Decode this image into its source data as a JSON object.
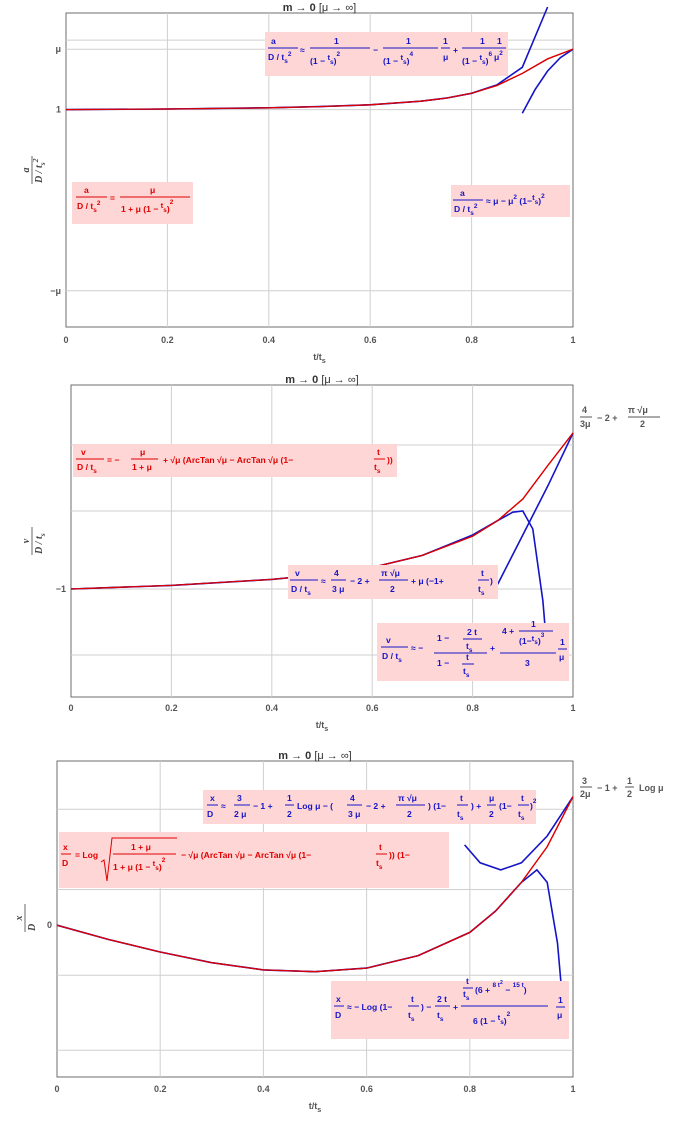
{
  "chart_data": [
    {
      "type": "line",
      "title": "m → 0",
      "subtitle": "[μ → ∞]",
      "xlabel": "t/t_s",
      "ylabel": "a / (D/t_s^2)",
      "xlim": [
        0,
        1
      ],
      "x_ticks": [
        "0",
        "0.2",
        "0.4",
        "0.6",
        "0.8",
        "1"
      ],
      "y_ticks": [
        "μ",
        "1",
        "−μ"
      ],
      "grid": true,
      "colors": {
        "exact": "#dd0000",
        "approx": "#1414c8",
        "label_bg": "#ffd6d6"
      },
      "annotations": [
        {
          "color": "red",
          "text": "a / (D/t_s^2) = μ / (1 + μ(1 − t/t_s)^2)"
        },
        {
          "color": "blue",
          "text": "a / (D/t_s^2) ≈ 1/(1 − t/t_s)^2 − 1/(1 − t/t_s)^4 · 1/μ + 1/(1 − t/t_s)^6 · 1/μ^2"
        },
        {
          "color": "blue",
          "text": "a / (D/t_s^2) ≈ μ − μ^2 (1 − t/t_s)^2"
        }
      ],
      "series": [
        {
          "color": "red",
          "x": [
            0,
            0.2,
            0.4,
            0.5,
            0.6,
            0.7,
            0.75,
            0.8,
            0.85,
            0.9,
            0.95,
            1.0
          ],
          "y": [
            1.0,
            1.01,
            1.03,
            1.05,
            1.08,
            1.14,
            1.19,
            1.27,
            1.4,
            1.6,
            1.84,
            2.0
          ]
        },
        {
          "color": "blue",
          "x": [
            0,
            0.2,
            0.4,
            0.5,
            0.6,
            0.7,
            0.75,
            0.8,
            0.85,
            0.9,
            0.95
          ],
          "y": [
            1.0,
            1.01,
            1.03,
            1.05,
            1.08,
            1.14,
            1.19,
            1.27,
            1.41,
            1.7,
            2.7
          ]
        },
        {
          "color": "blue",
          "x": [
            0.9,
            0.925,
            0.95,
            0.975,
            1.0
          ],
          "y": [
            0.94,
            1.33,
            1.64,
            1.86,
            2.0
          ]
        }
      ]
    },
    {
      "type": "line",
      "title": "m → 0",
      "subtitle": "[μ → ∞]",
      "xlabel": "t/t_s",
      "ylabel": "v / (D/t_s)",
      "xlim": [
        0,
        1
      ],
      "x_ticks": [
        "0",
        "0.2",
        "0.4",
        "0.6",
        "0.8",
        "1"
      ],
      "y_ticks": [
        "−1"
      ],
      "grid": true,
      "right_label": "4/(3μ) − 2 + π√μ/2",
      "annotations": [
        {
          "color": "red",
          "text": "v / (D/t_s) = − μ/(1 + μ) + √μ (ArcTan √μ − ArcTan √μ (1 − t/t_s))"
        },
        {
          "color": "blue",
          "text": "v / (D/t_s) ≈ 4/(3μ) − 2 + π√μ/2 + μ(−1 + t/t_s)"
        },
        {
          "color": "blue",
          "text": "v / (D/t_s) ≈ − (1 − 2t/t_s)/(1 − t/t_s) + (4 + 1/(1 − t/t_s)^3)/3 · 1/μ"
        }
      ],
      "series": [
        {
          "color": "red",
          "x": [
            0,
            0.2,
            0.4,
            0.5,
            0.6,
            0.7,
            0.8,
            0.85,
            0.9,
            0.95,
            1.0
          ],
          "y": [
            -1.0,
            -0.97,
            -0.92,
            -0.88,
            -0.82,
            -0.72,
            -0.56,
            -0.43,
            -0.25,
            0.03,
            0.3
          ]
        },
        {
          "color": "blue",
          "x": [
            0,
            0.2,
            0.4,
            0.5,
            0.6,
            0.7,
            0.8,
            0.85,
            0.88,
            0.9,
            0.92,
            0.94,
            0.95
          ],
          "y": [
            -1.0,
            -0.97,
            -0.92,
            -0.88,
            -0.82,
            -0.72,
            -0.55,
            -0.43,
            -0.36,
            -0.35,
            -0.5,
            -1.1,
            -1.6
          ]
        },
        {
          "color": "blue",
          "x": [
            0.85,
            0.9,
            0.95,
            1.0
          ],
          "y": [
            -0.96,
            -0.55,
            -0.14,
            0.3
          ]
        }
      ]
    },
    {
      "type": "line",
      "title": "m → 0",
      "subtitle": "[μ → ∞]",
      "xlabel": "t/t_s",
      "ylabel": "x / D",
      "xlim": [
        0,
        1
      ],
      "x_ticks": [
        "0",
        "0.2",
        "0.4",
        "0.6",
        "0.8",
        "1"
      ],
      "y_ticks": [
        "0"
      ],
      "grid": true,
      "right_label": "3/(2μ) − 1 + 1/2 Log μ",
      "annotations": [
        {
          "color": "blue",
          "text": "x / D ≈ 3/(2μ) − 1 + 1/2 Log μ − (4/(3μ) − 2 + π√μ/2)(1 − t/t_s) + μ/2 (1 − t/t_s)^2"
        },
        {
          "color": "red",
          "text": "x / D = Log √((1 + μ)/(1 + μ(1 − t/t_s)^2)) − √μ (ArcTan √μ − ArcTan √μ (1 − t/t_s))(1 − t/t_s) − μ/(1 + μ) · t/t_s"
        },
        {
          "color": "blue",
          "text": "x / D ≈ − Log(1 − t/t_s) − 2t/t_s + t/t_s (6 + 8t^2/t_s^2 − 15t/t_s) / (6(1 − t/t_s)^2) · 1/μ"
        }
      ],
      "series": [
        {
          "color": "red",
          "x": [
            0,
            0.1,
            0.2,
            0.3,
            0.4,
            0.5,
            0.6,
            0.7,
            0.8,
            0.85,
            0.9,
            0.95,
            1.0
          ],
          "y": [
            0.0,
            -0.08,
            -0.15,
            -0.21,
            -0.25,
            -0.26,
            -0.24,
            -0.17,
            -0.04,
            0.08,
            0.24,
            0.44,
            0.72
          ]
        },
        {
          "color": "blue",
          "x": [
            0,
            0.1,
            0.2,
            0.3,
            0.4,
            0.5,
            0.6,
            0.7,
            0.8,
            0.85,
            0.9,
            0.93,
            0.95,
            0.97,
            0.985
          ],
          "y": [
            0.0,
            -0.08,
            -0.15,
            -0.21,
            -0.25,
            -0.26,
            -0.24,
            -0.17,
            -0.04,
            0.08,
            0.24,
            0.31,
            0.24,
            -0.1,
            -0.6
          ]
        },
        {
          "color": "blue",
          "x": [
            0.79,
            0.82,
            0.86,
            0.9,
            0.95,
            1.0
          ],
          "y": [
            0.45,
            0.35,
            0.31,
            0.35,
            0.5,
            0.72
          ]
        }
      ]
    }
  ]
}
